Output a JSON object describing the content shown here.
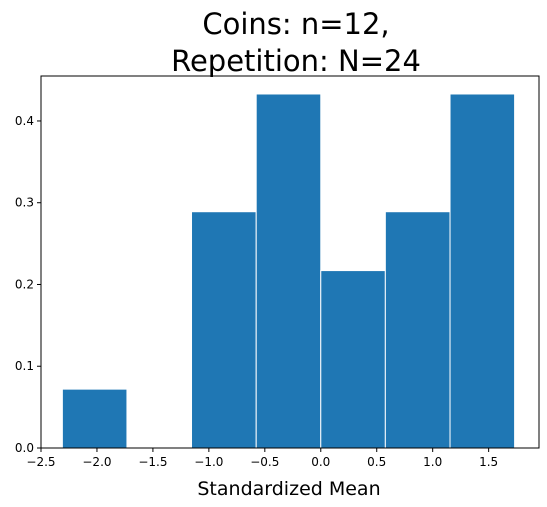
{
  "chart_data": {
    "type": "bar",
    "title_lines": [
      "Coins: n=12,",
      "Repetition: N=24"
    ],
    "xlabel": "Standardized Mean",
    "ylabel": "",
    "xlim": [
      -2.5,
      1.95
    ],
    "ylim": [
      0,
      0.455
    ],
    "xticks": [
      -2.5,
      -2.0,
      -1.5,
      -1.0,
      -0.5,
      0.0,
      0.5,
      1.0,
      1.5
    ],
    "xtick_labels": [
      "−2.5",
      "−2.0",
      "−1.5",
      "−1.0",
      "−0.5",
      "0.0",
      "0.5",
      "1.0",
      "1.5"
    ],
    "yticks": [
      0.0,
      0.1,
      0.2,
      0.3,
      0.4
    ],
    "ytick_labels": [
      "0.0",
      "0.1",
      "0.2",
      "0.3",
      "0.4"
    ],
    "bin_edges": [
      -2.309,
      -1.732,
      -1.155,
      -0.577,
      0.0,
      0.577,
      1.155,
      1.732
    ],
    "values": [
      0.072,
      0.0,
      0.289,
      0.433,
      0.217,
      0.289,
      0.433
    ],
    "bar_color": "#1f77b4",
    "bar_edge_color": "#ffffff",
    "grid": false
  }
}
